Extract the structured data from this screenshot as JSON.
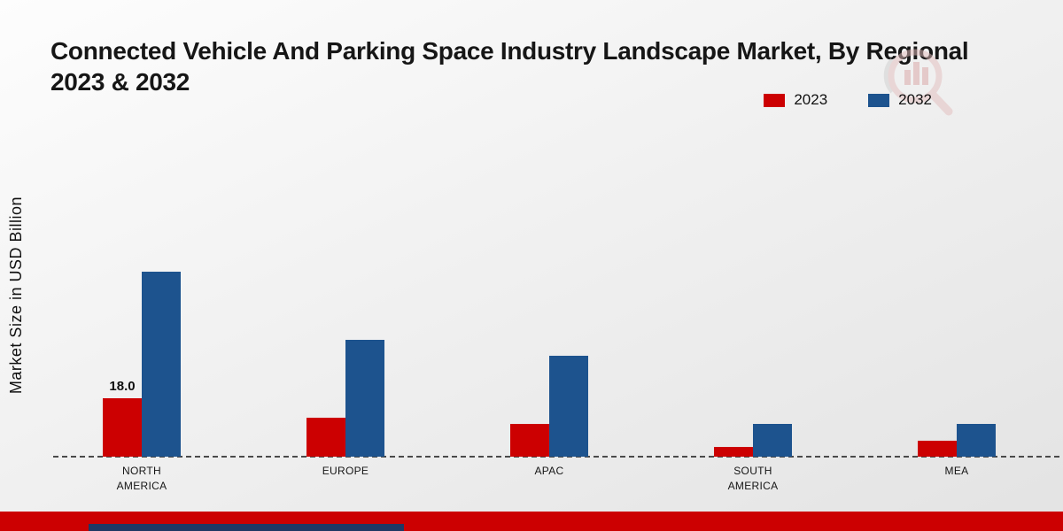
{
  "title": {
    "line1": "Connected Vehicle And Parking Space Industry Landscape Market, By Regional",
    "line2": "2023 & 2032"
  },
  "y_axis_label": "Market Size in USD Billion",
  "legend": [
    {
      "label": "2023",
      "color": "#cc0001"
    },
    {
      "label": "2032",
      "color": "#1d538e"
    }
  ],
  "chart_data": {
    "type": "bar",
    "title": "Connected Vehicle And Parking Space Industry Landscape Market, By Regional 2023 & 2032",
    "xlabel": "",
    "ylabel": "Market Size in USD Billion",
    "categories": [
      "NORTH AMERICA",
      "EUROPE",
      "APAC",
      "SOUTH AMERICA",
      "MEA"
    ],
    "series": [
      {
        "name": "2023",
        "color": "#cc0001",
        "values": [
          18.0,
          12.0,
          10.0,
          3.0,
          5.0
        ]
      },
      {
        "name": "2032",
        "color": "#1d538e",
        "values": [
          57.0,
          36.0,
          31.0,
          10.0,
          10.0
        ]
      }
    ],
    "annotations": [
      {
        "category": "NORTH AMERICA",
        "series": "2023",
        "text": "18.0"
      }
    ],
    "ylim": [
      0,
      60
    ],
    "grid": false,
    "baseline_style": "dashed",
    "legend_position": "top-right"
  },
  "colors": {
    "accent_red": "#cc0001",
    "accent_blue": "#1d538e",
    "footer_red": "#cc0001",
    "footer_navy": "#1f3864",
    "baseline": "#4a4a4a"
  }
}
